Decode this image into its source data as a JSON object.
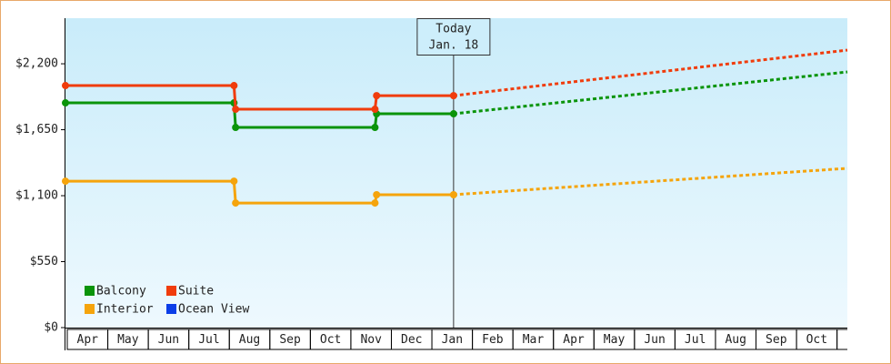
{
  "chart_data": {
    "type": "line",
    "categories": [
      "Apr",
      "May",
      "Jun",
      "Jul",
      "Aug",
      "Sep",
      "Oct",
      "Nov",
      "Dec",
      "Jan",
      "Feb",
      "Mar",
      "Apr",
      "May",
      "Jun",
      "Jul",
      "Aug",
      "Sep",
      "Oct"
    ],
    "x": [
      0,
      4.16,
      4.2,
      7.64,
      7.68,
      9.58,
      19.3
    ],
    "xlim": [
      0,
      19.3
    ],
    "ylim": [
      0,
      2580
    ],
    "yticks": [
      {
        "value": 0,
        "label": "$0"
      },
      {
        "value": 550,
        "label": "$550"
      },
      {
        "value": 1100,
        "label": "$1,100"
      },
      {
        "value": 1650,
        "label": "$1,650"
      },
      {
        "value": 2200,
        "label": "$2,200"
      }
    ],
    "today": {
      "x": 9.58,
      "label": "Today",
      "date": "Jan. 18"
    },
    "series": [
      {
        "name": "Balcony",
        "color": "#0a940a",
        "values": [
          1874,
          1874,
          1669,
          1669,
          1783,
          1783,
          2132
        ]
      },
      {
        "name": "Suite",
        "color": "#f03c0c",
        "values": [
          2018,
          2018,
          1821,
          1821,
          1934,
          1934,
          2314
        ]
      },
      {
        "name": "Interior",
        "color": "#f5a40c",
        "values": [
          1221,
          1221,
          1039,
          1039,
          1108,
          1108,
          1328
        ]
      },
      {
        "name": "Ocean View",
        "color": "#0b3ee8",
        "values": [
          null,
          null,
          null,
          null,
          null,
          null,
          null
        ]
      }
    ]
  }
}
